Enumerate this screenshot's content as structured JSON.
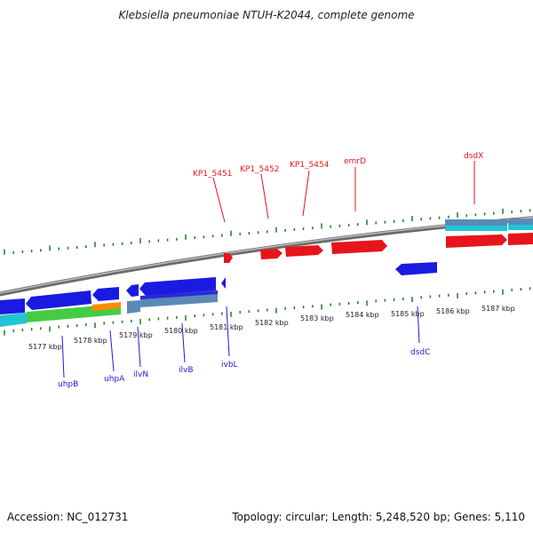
{
  "title": "Klebsiella pneumoniae NTUH-K2044, complete genome",
  "accession_text": "Accession: NC_012731",
  "topology_text": "Topology: circular; Length: 5,248,520 bp; Genes: 5,110",
  "colors": {
    "forward": "#e8141b",
    "reverse": "#1a1ae0",
    "tick": "#1f7a1f",
    "backbone": "#888888",
    "cyan": "#22c4d4",
    "steel": "#5a8ab5",
    "green": "#44cc44",
    "orange": "#ff8c00"
  },
  "axis_labels": [
    "5177 kbp",
    "5178 kbp",
    "5179 kbp",
    "5180 kbp",
    "5181 kbp",
    "5182 kbp",
    "5183 kbp",
    "5184 kbp",
    "5185 kbp",
    "5186 kbp",
    "5187 kbp"
  ],
  "forward_labels": [
    "KP1_5451",
    "KP1_5452",
    "KP1_5454",
    "emrD",
    "dsdX"
  ],
  "reverse_labels": [
    "uhpB",
    "uhpA",
    "ilvN",
    "ilvB",
    "ivbL",
    "dsdC"
  ]
}
